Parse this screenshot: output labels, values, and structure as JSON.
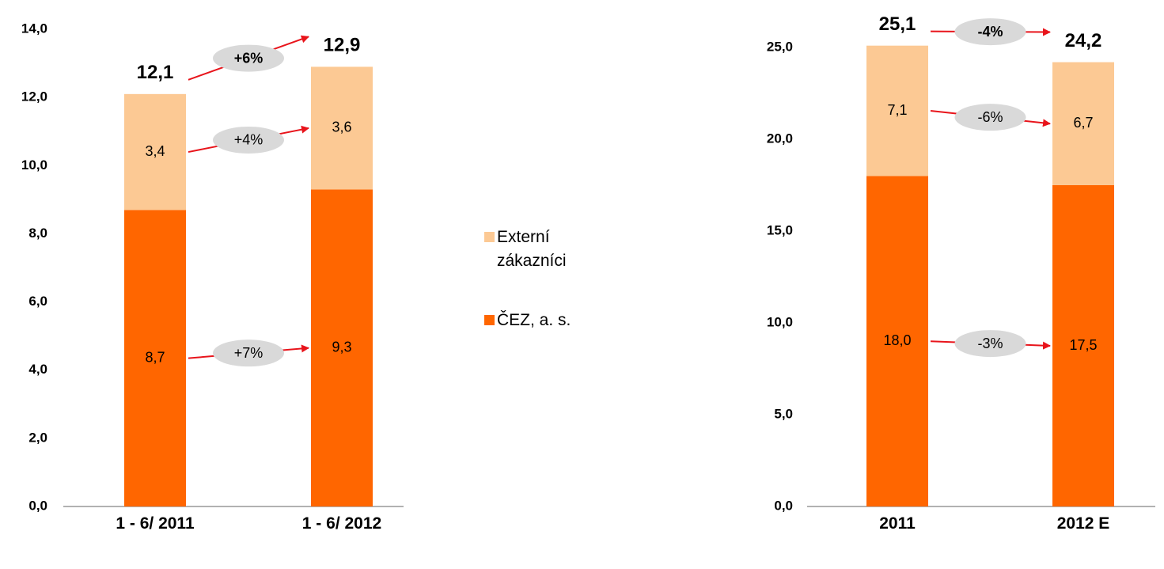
{
  "chart_data": [
    {
      "type": "stacked_bar",
      "categories": [
        "1 - 6/ 2011",
        "1 - 6/ 2012"
      ],
      "series": [
        {
          "name": "ČEZ, a. s.",
          "color": "#ff6600",
          "values": [
            8.7,
            9.3
          ],
          "value_labels": [
            "8,7",
            "9,3"
          ],
          "change": "+7%"
        },
        {
          "name": "Externí zákazníci",
          "color": "#fcc994",
          "values": [
            3.4,
            3.6
          ],
          "value_labels": [
            "3,4",
            "3,6"
          ],
          "change": "+4%"
        }
      ],
      "totals": [
        12.1,
        12.9
      ],
      "total_labels": [
        "12,1",
        "12,9"
      ],
      "total_change": "+6%",
      "ylim": [
        0,
        14
      ],
      "yticks": [
        {
          "value": 0,
          "label": "0,0"
        },
        {
          "value": 2,
          "label": "2,0"
        },
        {
          "value": 4,
          "label": "4,0"
        },
        {
          "value": 6,
          "label": "6,0"
        },
        {
          "value": 8,
          "label": "8,0"
        },
        {
          "value": 10,
          "label": "10,0"
        },
        {
          "value": 12,
          "label": "12,0"
        },
        {
          "value": 14,
          "label": "14,0"
        }
      ]
    },
    {
      "type": "stacked_bar",
      "categories": [
        "2011",
        "2012 E"
      ],
      "series": [
        {
          "name": "ČEZ, a. s.",
          "color": "#ff6600",
          "values": [
            18.0,
            17.5
          ],
          "value_labels": [
            "18,0",
            "17,5"
          ],
          "change": "-3%"
        },
        {
          "name": "Externí zákazníci",
          "color": "#fcc994",
          "values": [
            7.1,
            6.7
          ],
          "value_labels": [
            "7,1",
            "6,7"
          ],
          "change": "-6%"
        }
      ],
      "totals": [
        25.1,
        24.2
      ],
      "total_labels": [
        "25,1",
        "24,2"
      ],
      "total_change": "-4%",
      "ylim": [
        0,
        25
      ],
      "yticks": [
        {
          "value": 0,
          "label": "0,0"
        },
        {
          "value": 5,
          "label": "5,0"
        },
        {
          "value": 10,
          "label": "10,0"
        },
        {
          "value": 15,
          "label": "15,0"
        },
        {
          "value": 20,
          "label": "20,0"
        },
        {
          "value": 25,
          "label": "25,0"
        }
      ]
    }
  ]
}
